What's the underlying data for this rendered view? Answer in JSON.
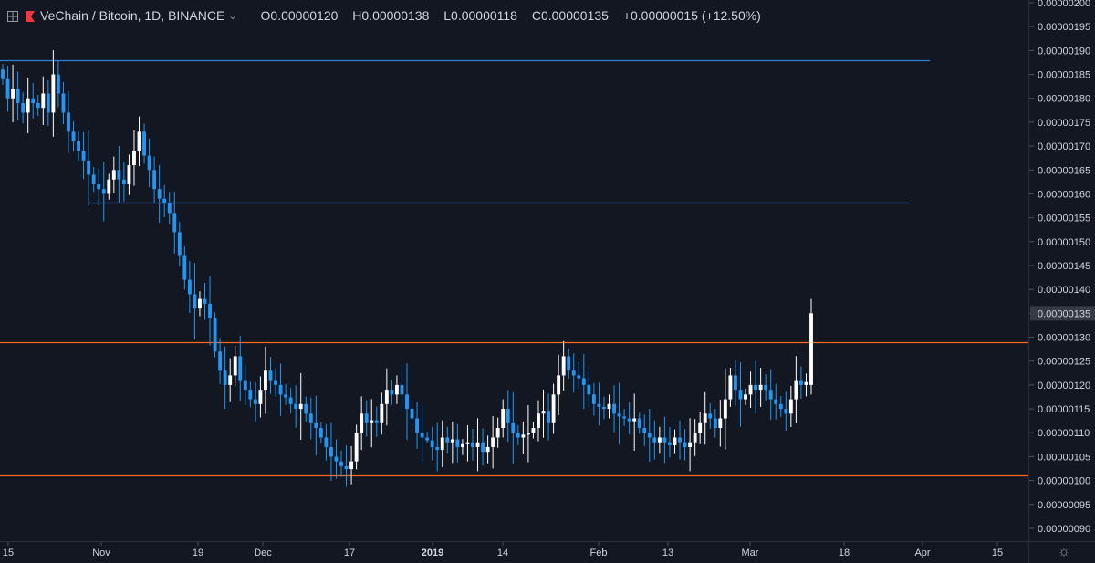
{
  "header": {
    "symbol": "VeChain / Bitcoin, 1D, BINANCE",
    "open": "O0.00000120",
    "high": "H0.00000138",
    "low": "L0.00000118",
    "close": "C0.00000135",
    "change": "+0.00000015 (+12.50%)"
  },
  "colors": {
    "background": "#131722",
    "up": "#ffffff",
    "down": "#2196f3",
    "support_resistance_orange": "#ff6a1a",
    "level_blue": "#2e7fd9",
    "axis_text": "#d1d4dc",
    "last_price_label_bg": "#363a45"
  },
  "chart_data": {
    "type": "candlestick",
    "symbol": "VeChain / Bitcoin",
    "interval": "1D",
    "exchange": "BINANCE",
    "ylim": [
      8.8e-07,
      2e-06
    ],
    "y_ticks": [
      "0.00000090",
      "0.00000095",
      "0.00000100",
      "0.00000105",
      "0.00000110",
      "0.00000115",
      "0.00000120",
      "0.00000125",
      "0.00000130",
      "0.00000135",
      "0.00000140",
      "0.00000145",
      "0.00000150",
      "0.00000155",
      "0.00000160",
      "0.00000165",
      "0.00000170",
      "0.00000175",
      "0.00000180",
      "0.00000185",
      "0.00000190",
      "0.00000195",
      "0.00000200"
    ],
    "x_ticks": [
      "15",
      "Nov",
      "19",
      "Dec",
      "17",
      "2019",
      "14",
      "Feb",
      "13",
      "Mar",
      "18",
      "Apr",
      "15"
    ],
    "last_price_label": "0.00000135",
    "last": {
      "open": 1.2e-06,
      "high": 1.38e-06,
      "low": 1.18e-06,
      "close": 1.35e-06
    },
    "horizontal_levels": [
      {
        "price": 1.88e-06,
        "color": "blue",
        "extent": "long"
      },
      {
        "price": 1.582e-06,
        "color": "blue",
        "extent": "mid"
      },
      {
        "price": 1.29e-06,
        "color": "orange",
        "extent": "full"
      },
      {
        "price": 1.01e-06,
        "color": "orange",
        "extent": "full"
      }
    ],
    "closes": [
      1.84,
      1.8,
      1.82,
      1.79,
      1.77,
      1.8,
      1.79,
      1.78,
      1.81,
      1.77,
      1.85,
      1.81,
      1.77,
      1.73,
      1.71,
      1.69,
      1.67,
      1.64,
      1.62,
      1.61,
      1.6,
      1.63,
      1.65,
      1.63,
      1.62,
      1.66,
      1.69,
      1.73,
      1.68,
      1.65,
      1.61,
      1.59,
      1.58,
      1.56,
      1.52,
      1.47,
      1.42,
      1.39,
      1.36,
      1.38,
      1.37,
      1.34,
      1.27,
      1.23,
      1.2,
      1.22,
      1.26,
      1.21,
      1.19,
      1.17,
      1.16,
      1.19,
      1.23,
      1.21,
      1.2,
      1.18,
      1.18,
      1.16,
      1.15,
      1.16,
      1.14,
      1.12,
      1.11,
      1.09,
      1.07,
      1.05,
      1.04,
      1.03,
      1.03,
      1.04,
      1.1,
      1.14,
      1.12,
      1.12,
      1.12,
      1.16,
      1.19,
      1.18,
      1.2,
      1.18,
      1.15,
      1.13,
      1.1,
      1.09,
      1.09,
      1.07,
      1.07,
      1.09,
      1.08,
      1.08,
      1.07,
      1.07,
      1.08,
      1.07,
      1.08,
      1.06,
      1.07,
      1.09,
      1.11,
      1.15,
      1.12,
      1.1,
      1.09,
      1.09,
      1.1,
      1.11,
      1.14,
      1.14,
      1.12,
      1.18,
      1.22,
      1.26,
      1.23,
      1.22,
      1.22,
      1.2,
      1.18,
      1.16,
      1.16,
      1.15,
      1.16,
      1.14,
      1.14,
      1.13,
      1.13,
      1.12,
      1.11,
      1.1,
      1.09,
      1.08,
      1.09,
      1.08,
      1.08,
      1.09,
      1.08,
      1.07,
      1.08,
      1.1,
      1.12,
      1.14,
      1.13,
      1.11,
      1.13,
      1.17,
      1.22,
      1.19,
      1.17,
      1.18,
      1.2,
      1.19,
      1.2,
      1.19,
      1.17,
      1.16,
      1.15,
      1.14,
      1.17,
      1.21,
      1.2,
      1.2,
      1.35
    ]
  }
}
